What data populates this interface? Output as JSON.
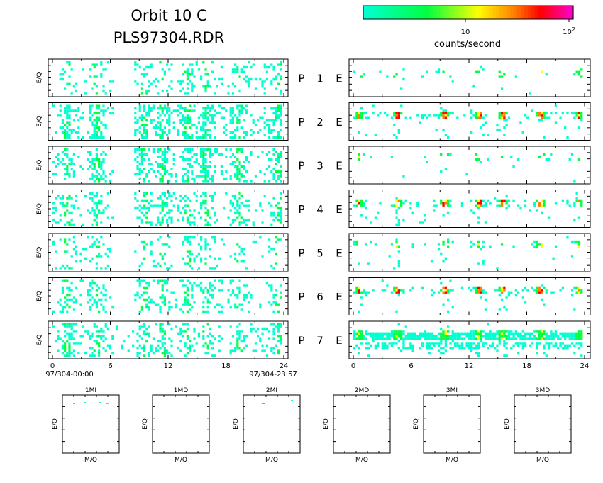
{
  "header": {
    "title": "Orbit 10 C",
    "subtitle": "PLS97304.RDR"
  },
  "colorbar": {
    "tick_10": "10",
    "tick_100": "10",
    "tick_100_exp": "2",
    "unit_label": "counts/second",
    "colors": [
      "#00ffd0",
      "#00ff40",
      "#ffff00",
      "#ff8000",
      "#ff0000",
      "#ff00c0"
    ]
  },
  "axes": {
    "ylabel": "E/Q",
    "x_ticks": [
      "0",
      "6",
      "12",
      "18",
      "24"
    ],
    "start_label": "97/304-00:00",
    "end_label": "97/304-23:57",
    "bottom_ylabel": "E/Q",
    "bottom_xlabel": "M/Q"
  },
  "rows": [
    {
      "p": "P",
      "num": "1",
      "e": "E"
    },
    {
      "p": "P",
      "num": "2",
      "e": "E"
    },
    {
      "p": "P",
      "num": "3",
      "e": "E"
    },
    {
      "p": "P",
      "num": "4",
      "e": "E"
    },
    {
      "p": "P",
      "num": "5",
      "e": "E"
    },
    {
      "p": "P",
      "num": "6",
      "e": "E"
    },
    {
      "p": "P",
      "num": "7",
      "e": "E"
    }
  ],
  "bottom_panels": [
    "1MI",
    "1MD",
    "2MI",
    "2MD",
    "3MI",
    "3MD"
  ],
  "chart_data": {
    "type": "heatmap",
    "x_range_hours": [
      0,
      24
    ],
    "color_scale": "log counts/second",
    "p_activity_centers_hours": [
      1.5,
      4.5,
      9.5,
      11.5,
      14,
      16,
      19.5,
      23.5
    ],
    "e_activity_centers_hours": [
      0.5,
      4.5,
      9.5,
      13,
      15.5,
      19.5,
      23.5
    ]
  }
}
